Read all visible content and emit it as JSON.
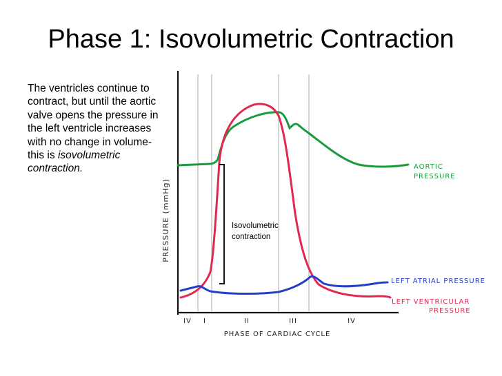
{
  "slide": {
    "title": "Phase 1: Isovolumetric Contraction",
    "body": {
      "normal": "The ventricles continue to contract, but until the aortic valve opens the pressure in the left ventricle increases with no change in volume- this is ",
      "italic": "isovolumetric contraction."
    }
  },
  "diagram": {
    "y_axis_label": "PRESSURE (mmHg)",
    "x_axis_label": "PHASE OF CARDIAC CYCLE",
    "phases": [
      "IV",
      "I",
      "II",
      "III",
      "IV"
    ],
    "curve_labels": {
      "aortic_1": "AORTIC",
      "aortic_2": "PRESSURE",
      "atrial": "LEFT ATRIAL PRESSURE",
      "ventricular_1": "LEFT VENTRICULAR",
      "ventricular_2": "PRESSURE"
    },
    "annotation": {
      "line1": "Isovolumetric",
      "line2": "contraction"
    },
    "colors": {
      "aortic": "#1a9a3c",
      "ventricular": "#e02850",
      "atrial": "#2340c8",
      "axis": "#111111",
      "phase_line": "#bdbdbd"
    }
  }
}
